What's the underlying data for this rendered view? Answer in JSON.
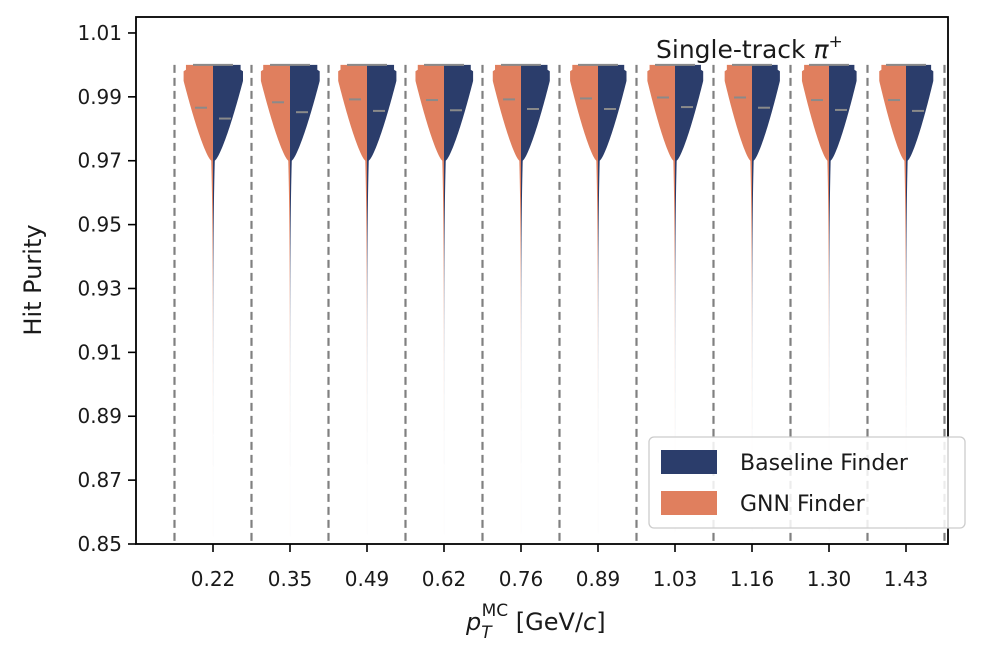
{
  "chart_data": {
    "type": "violin",
    "title": "",
    "annotation": {
      "text": "Single-track ",
      "symbol": "π",
      "superscript": "+"
    },
    "xlabel": {
      "main": "p",
      "sub": "T",
      "sup": "MC",
      "unit_open": " [GeV/",
      "unit_var": "c",
      "unit_close": "]"
    },
    "ylabel": "Hit Purity",
    "ylim": [
      0.85,
      1.015
    ],
    "yticks": [
      "0.85",
      "0.87",
      "0.89",
      "0.91",
      "0.93",
      "0.95",
      "0.97",
      "0.99",
      "1.01"
    ],
    "categories": [
      "0.22",
      "0.35",
      "0.49",
      "0.62",
      "0.76",
      "0.89",
      "1.03",
      "1.16",
      "1.30",
      "1.43"
    ],
    "series": [
      {
        "name": "Baseline Finder",
        "color": "#2b3d6b",
        "side": "right",
        "median": [
          0.9832,
          0.9852,
          0.9856,
          0.9858,
          0.9862,
          0.9862,
          0.9868,
          0.9866,
          0.9859,
          0.9856
        ]
      },
      {
        "name": "GNN Finder",
        "color": "#e07f5e",
        "side": "left",
        "median": [
          0.9866,
          0.9883,
          0.9892,
          0.989,
          0.9892,
          0.9895,
          0.9898,
          0.9898,
          0.989,
          0.989
        ]
      }
    ],
    "legend": {
      "position": "bottom-right"
    },
    "grid": false,
    "separators": "dashed"
  }
}
